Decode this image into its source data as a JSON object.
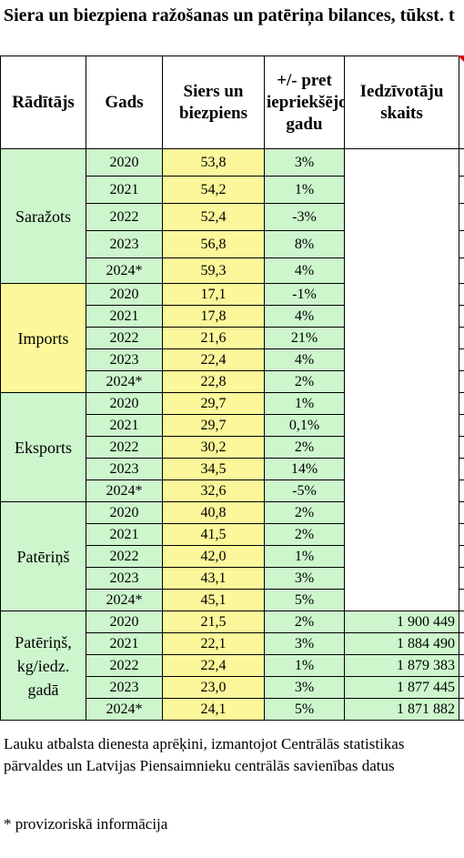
{
  "title": "Siera un biezpiena ražošanas un patēriņa bilances, tūkst. t",
  "headers": {
    "indicator": "Rādītājs",
    "year": "Gads",
    "value": "Siers un biezpiens",
    "change": "+/- pret iepriekšējo gadu",
    "population": "Iedzīvotāju skaits"
  },
  "groups": [
    {
      "name": "Saražots",
      "color": "#cdf6cd",
      "rows": [
        {
          "year": "2020",
          "value": "53,8",
          "change": "3%"
        },
        {
          "year": "2021",
          "value": "54,2",
          "change": "1%"
        },
        {
          "year": "2022",
          "value": "52,4",
          "change": "-3%"
        },
        {
          "year": "2023",
          "value": "56,8",
          "change": "8%"
        },
        {
          "year": "2024*",
          "value": "59,3",
          "change": "4%"
        }
      ]
    },
    {
      "name": "Imports",
      "color": "#fbf79a",
      "rows": [
        {
          "year": "2020",
          "value": "17,1",
          "change": "-1%"
        },
        {
          "year": "2021",
          "value": "17,8",
          "change": "4%"
        },
        {
          "year": "2022",
          "value": "21,6",
          "change": "21%"
        },
        {
          "year": "2023",
          "value": "22,4",
          "change": "4%"
        },
        {
          "year": "2024*",
          "value": "22,8",
          "change": "2%"
        }
      ]
    },
    {
      "name": "Eksports",
      "color": "#cdf6cd",
      "rows": [
        {
          "year": "2020",
          "value": "29,7",
          "change": "1%"
        },
        {
          "year": "2021",
          "value": "29,7",
          "change": "0,1%"
        },
        {
          "year": "2022",
          "value": "30,2",
          "change": "2%"
        },
        {
          "year": "2023",
          "value": "34,5",
          "change": "14%"
        },
        {
          "year": "2024*",
          "value": "32,6",
          "change": "-5%"
        }
      ]
    },
    {
      "name": "Patēriņš",
      "color": "#cdf6cd",
      "rows": [
        {
          "year": "2020",
          "value": "40,8",
          "change": "2%"
        },
        {
          "year": "2021",
          "value": "41,5",
          "change": "2%"
        },
        {
          "year": "2022",
          "value": "42,0",
          "change": "1%"
        },
        {
          "year": "2023",
          "value": "43,1",
          "change": "3%"
        },
        {
          "year": "2024*",
          "value": "45,1",
          "change": "5%"
        }
      ]
    },
    {
      "name": "Patēriņš, kg/iedz. gadā",
      "color": "#cdf6cd",
      "rows": [
        {
          "year": "2020",
          "value": "21,5",
          "change": "2%",
          "population": "1 900 449"
        },
        {
          "year": "2021",
          "value": "22,1",
          "change": "3%",
          "population": "1 884 490"
        },
        {
          "year": "2022",
          "value": "22,4",
          "change": "1%",
          "population": "1 879 383"
        },
        {
          "year": "2023",
          "value": "23,0",
          "change": "3%",
          "population": "1 877 445"
        },
        {
          "year": "2024*",
          "value": "24,1",
          "change": "5%",
          "population": "1 871 882"
        }
      ]
    }
  ],
  "source_note": "Lauku atbalsta dienesta aprēķini, izmantojot Centrālās statistikas pārvaldes un Latvijas Piensaimnieku centrālās savienības datus",
  "footnote": "* provizoriskā informācija"
}
